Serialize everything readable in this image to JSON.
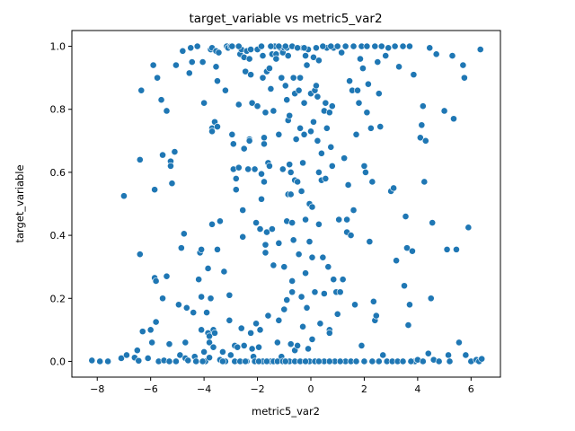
{
  "chart_data": {
    "type": "scatter",
    "title": "target_variable vs metric5_var2",
    "xlabel": "metric5_var2",
    "ylabel": "target_variable",
    "xlim": [
      -8.95,
      7.1
    ],
    "ylim": [
      -0.05,
      1.05
    ],
    "xticks": [
      -8,
      -6,
      -4,
      -2,
      0,
      2,
      4,
      6
    ],
    "yticks": [
      0.0,
      0.2,
      0.4,
      0.6,
      0.8,
      1.0
    ],
    "xtick_labels": [
      "−8",
      "−6",
      "−4",
      "−2",
      "0",
      "2",
      "4",
      "6"
    ],
    "ytick_labels": [
      "0.0",
      "0.2",
      "0.4",
      "0.6",
      "0.8",
      "1.0"
    ],
    "grid": false,
    "legend": "none",
    "marker_color": "#1f77b4",
    "points": [
      [
        -8.2,
        0.003
      ],
      [
        -7.9,
        0.0
      ],
      [
        -7.6,
        0.0
      ],
      [
        -7.1,
        0.01
      ],
      [
        -7.0,
        0.525
      ],
      [
        -6.9,
        0.02
      ],
      [
        -6.6,
        0.012
      ],
      [
        -6.5,
        0.035
      ],
      [
        -6.45,
        0.002
      ],
      [
        -6.4,
        0.64
      ],
      [
        -6.4,
        0.34
      ],
      [
        -6.35,
        0.86
      ],
      [
        -6.3,
        0.095
      ],
      [
        -6.1,
        0.01
      ],
      [
        -6.0,
        0.1
      ],
      [
        -5.95,
        0.06
      ],
      [
        -5.9,
        0.94
      ],
      [
        -5.85,
        0.545
      ],
      [
        -5.85,
        0.265
      ],
      [
        -5.8,
        0.255
      ],
      [
        -5.8,
        0.125
      ],
      [
        -5.75,
        0.9
      ],
      [
        -5.7,
        0.0
      ],
      [
        -5.6,
        0.83
      ],
      [
        -5.55,
        0.655
      ],
      [
        -5.55,
        0.2
      ],
      [
        -5.5,
        0.003
      ],
      [
        -5.4,
        0.795
      ],
      [
        -5.4,
        0.27
      ],
      [
        -5.3,
        0.055
      ],
      [
        -5.25,
        0.635
      ],
      [
        -5.25,
        0.62
      ],
      [
        -5.2,
        0.565
      ],
      [
        -5.1,
        0.665
      ],
      [
        -5.05,
        0.94
      ],
      [
        -5.05,
        0.0
      ],
      [
        -4.95,
        0.18
      ],
      [
        -4.9,
        0.02
      ],
      [
        -4.85,
        0.36
      ],
      [
        -4.8,
        0.985
      ],
      [
        -4.75,
        0.405
      ],
      [
        -4.7,
        0.06
      ],
      [
        -4.7,
        0.01
      ],
      [
        -4.65,
        0.17
      ],
      [
        -4.6,
        0.003
      ],
      [
        -4.55,
        0.915
      ],
      [
        -4.5,
        0.995
      ],
      [
        -4.45,
        0.95
      ],
      [
        -4.4,
        0.155
      ],
      [
        -4.35,
        0.015
      ],
      [
        -4.3,
        0.0
      ],
      [
        -4.25,
        1.0
      ],
      [
        -4.2,
        0.26
      ],
      [
        -4.15,
        0.345
      ],
      [
        -4.1,
        0.355
      ],
      [
        -4.1,
        0.205
      ],
      [
        -4.1,
        0.1
      ],
      [
        -4.05,
        0.95
      ],
      [
        -4.0,
        0.82
      ],
      [
        -4.0,
        0.03
      ],
      [
        -3.95,
        0.0
      ],
      [
        -3.9,
        0.155
      ],
      [
        -3.85,
        0.295
      ],
      [
        -3.85,
        0.09
      ],
      [
        -3.8,
        0.08
      ],
      [
        -3.8,
        0.06
      ],
      [
        -3.8,
        0.012
      ],
      [
        -3.75,
        0.2
      ],
      [
        -3.75,
        0.99
      ],
      [
        -3.7,
        0.995
      ],
      [
        -3.7,
        0.74
      ],
      [
        -3.7,
        0.73
      ],
      [
        -3.7,
        0.435
      ],
      [
        -3.65,
        0.1
      ],
      [
        -3.65,
        0.045
      ],
      [
        -3.6,
        0.76
      ],
      [
        -3.6,
        0.09
      ],
      [
        -3.55,
        0.985
      ],
      [
        -3.55,
        0.935
      ],
      [
        -3.5,
        0.89
      ],
      [
        -3.5,
        0.745
      ],
      [
        -3.5,
        0.355
      ],
      [
        -3.45,
        0.98
      ],
      [
        -3.4,
        0.445
      ],
      [
        -3.4,
        0.005
      ],
      [
        -3.3,
        0.03
      ],
      [
        -3.25,
        0.285
      ],
      [
        -3.2,
        0.86
      ],
      [
        -3.2,
        0.0
      ],
      [
        -3.15,
        1.0
      ],
      [
        -3.1,
        0.995
      ],
      [
        -3.05,
        0.13
      ],
      [
        -3.05,
        0.21
      ],
      [
        -3.0,
        1.0
      ],
      [
        -3.0,
        0.02
      ],
      [
        -2.95,
        0.72
      ],
      [
        -2.9,
        0.69
      ],
      [
        -2.9,
        0.61
      ],
      [
        -2.85,
        0.05
      ],
      [
        -2.85,
        0.0
      ],
      [
        -2.8,
        0.58
      ],
      [
        -2.8,
        0.545
      ],
      [
        -2.75,
        0.045
      ],
      [
        -2.7,
        0.615
      ],
      [
        -2.7,
        0.815
      ],
      [
        -2.65,
        0.975
      ],
      [
        -2.6,
        0.99
      ],
      [
        -2.6,
        0.105
      ],
      [
        -2.55,
        0.48
      ],
      [
        -2.55,
        0.395
      ],
      [
        -2.5,
        0.965
      ],
      [
        -2.5,
        0.675
      ],
      [
        -2.5,
        0.05
      ],
      [
        -2.45,
        0.92
      ],
      [
        -2.4,
        0.985
      ],
      [
        -2.4,
        0.0
      ],
      [
        -2.35,
        0.61
      ],
      [
        -2.3,
        0.705
      ],
      [
        -2.3,
        0.7
      ],
      [
        -2.3,
        0.96
      ],
      [
        -2.25,
        0.91
      ],
      [
        -2.25,
        0.09
      ],
      [
        -2.2,
        0.82
      ],
      [
        -2.2,
        0.04
      ],
      [
        -2.15,
        0.015
      ],
      [
        -2.1,
        0.61
      ],
      [
        -2.05,
        0.44
      ],
      [
        -2.05,
        0.12
      ],
      [
        -2.0,
        0.99
      ],
      [
        -2.0,
        0.81
      ],
      [
        -1.95,
        0.045
      ],
      [
        -1.9,
        0.42
      ],
      [
        -1.9,
        0.1
      ],
      [
        -1.85,
        0.595
      ],
      [
        -1.85,
        0.515
      ],
      [
        -1.8,
        0.97
      ],
      [
        -1.8,
        0.9
      ],
      [
        -1.8,
        0.0
      ],
      [
        -1.75,
        0.69
      ],
      [
        -1.75,
        0.71
      ],
      [
        -1.75,
        0.57
      ],
      [
        -1.7,
        0.37
      ],
      [
        -1.7,
        0.345
      ],
      [
        -1.7,
        0.79
      ],
      [
        -1.65,
        0.92
      ],
      [
        -1.65,
        0.41
      ],
      [
        -1.6,
        0.63
      ],
      [
        -1.6,
        0.145
      ],
      [
        -1.55,
        0.93
      ],
      [
        -1.55,
        0.62
      ],
      [
        -1.5,
        0.865
      ],
      [
        -1.5,
        0.0
      ],
      [
        -1.45,
        0.975
      ],
      [
        -1.45,
        0.42
      ],
      [
        -1.4,
        0.795
      ],
      [
        -1.4,
        0.305
      ],
      [
        -1.35,
        1.0
      ],
      [
        -1.3,
        0.975
      ],
      [
        -1.3,
        0.96
      ],
      [
        -1.25,
        0.06
      ],
      [
        -1.2,
        0.72
      ],
      [
        -1.2,
        0.375
      ],
      [
        -1.2,
        0.13
      ],
      [
        -1.15,
        0.995
      ],
      [
        -1.1,
        0.9
      ],
      [
        -1.1,
        0.015
      ],
      [
        -1.05,
        0.98
      ],
      [
        -1.05,
        0.61
      ],
      [
        -1.0,
        0.995
      ],
      [
        -1.0,
        0.3
      ],
      [
        -1.0,
        0.165
      ],
      [
        -0.95,
        0.875
      ],
      [
        -0.9,
        0.995
      ],
      [
        -0.9,
        0.83
      ],
      [
        -0.9,
        0.445
      ],
      [
        -0.9,
        0.195
      ],
      [
        -0.85,
        0.97
      ],
      [
        -0.85,
        0.765
      ],
      [
        -0.85,
        0.53
      ],
      [
        -0.8,
        0.78
      ],
      [
        -0.8,
        0.625
      ],
      [
        -0.8,
        0.0
      ],
      [
        -0.75,
        0.6
      ],
      [
        -0.75,
        0.53
      ],
      [
        -0.75,
        0.055
      ],
      [
        -0.7,
        0.44
      ],
      [
        -0.7,
        0.255
      ],
      [
        -0.7,
        0.22
      ],
      [
        -0.65,
        0.385
      ],
      [
        -0.65,
        0.9
      ],
      [
        -0.6,
        0.85
      ],
      [
        -0.6,
        0.575
      ],
      [
        -0.6,
        0.035
      ],
      [
        -0.55,
        0.705
      ],
      [
        -0.5,
        0.57
      ],
      [
        -0.5,
        0.05
      ],
      [
        -0.45,
        0.34
      ],
      [
        -0.45,
        0.86
      ],
      [
        -0.4,
        0.9
      ],
      [
        -0.4,
        0.74
      ],
      [
        -0.35,
        0.54
      ],
      [
        -0.35,
        0.205
      ],
      [
        -0.3,
        0.995
      ],
      [
        -0.3,
        0.63
      ],
      [
        -0.3,
        0.11
      ],
      [
        -0.25,
        0.82
      ],
      [
        -0.25,
        0.72
      ],
      [
        -0.2,
        0.97
      ],
      [
        -0.2,
        0.45
      ],
      [
        -0.2,
        0.28
      ],
      [
        -0.15,
        0.94
      ],
      [
        -0.15,
        0.17
      ],
      [
        -0.1,
        0.99
      ],
      [
        -0.1,
        0.04
      ],
      [
        -0.05,
        0.5
      ],
      [
        -0.05,
        0.38
      ],
      [
        -0.05,
        0.0
      ],
      [
        0.0,
        0.85
      ],
      [
        0.0,
        0.73
      ],
      [
        0.05,
        0.49
      ],
      [
        0.05,
        0.33
      ],
      [
        0.05,
        0.07
      ],
      [
        0.1,
        0.965
      ],
      [
        0.1,
        0.76
      ],
      [
        0.15,
        0.86
      ],
      [
        0.15,
        0.22
      ],
      [
        0.2,
        0.995
      ],
      [
        0.2,
        0.875
      ],
      [
        0.25,
        0.84
      ],
      [
        0.25,
        0.7
      ],
      [
        0.3,
        0.955
      ],
      [
        0.3,
        0.6
      ],
      [
        0.3,
        0.435
      ],
      [
        0.35,
        0.12
      ],
      [
        0.4,
        0.66
      ],
      [
        0.4,
        0.575
      ],
      [
        0.45,
        0.33
      ],
      [
        0.5,
        0.795
      ],
      [
        0.5,
        0.215
      ],
      [
        0.5,
        0.0
      ],
      [
        0.55,
        0.82
      ],
      [
        0.55,
        0.58
      ],
      [
        0.6,
        0.995
      ],
      [
        0.6,
        0.74
      ],
      [
        0.65,
        0.3
      ],
      [
        0.7,
        0.79
      ],
      [
        0.7,
        0.1
      ],
      [
        0.7,
        0.09
      ],
      [
        0.75,
        0.68
      ],
      [
        0.8,
        0.81
      ],
      [
        0.8,
        0.62
      ],
      [
        0.85,
        0.995
      ],
      [
        0.85,
        0.26
      ],
      [
        0.9,
        0.0
      ],
      [
        0.95,
        0.22
      ],
      [
        1.0,
        0.15
      ],
      [
        1.05,
        0.45
      ],
      [
        1.1,
        0.22
      ],
      [
        1.15,
        0.98
      ],
      [
        1.2,
        0.26
      ],
      [
        1.25,
        0.645
      ],
      [
        1.3,
        0.0
      ],
      [
        1.35,
        0.45
      ],
      [
        1.35,
        0.41
      ],
      [
        1.4,
        0.56
      ],
      [
        1.45,
        0.89
      ],
      [
        1.5,
        0.4
      ],
      [
        1.55,
        0.86
      ],
      [
        1.6,
        0.48
      ],
      [
        1.65,
        0.18
      ],
      [
        1.7,
        0.72
      ],
      [
        1.75,
        0.86
      ],
      [
        1.8,
        0.82
      ],
      [
        1.85,
        0.96
      ],
      [
        1.9,
        0.05
      ],
      [
        1.95,
        0.93
      ],
      [
        2.0,
        0.62
      ],
      [
        2.05,
        0.6
      ],
      [
        2.1,
        0.79
      ],
      [
        2.15,
        0.88
      ],
      [
        2.2,
        0.38
      ],
      [
        2.25,
        0.74
      ],
      [
        2.3,
        0.57
      ],
      [
        2.35,
        0.19
      ],
      [
        2.4,
        0.13
      ],
      [
        2.45,
        0.145
      ],
      [
        2.5,
        0.95
      ],
      [
        2.55,
        0.85
      ],
      [
        2.6,
        0.745
      ],
      [
        2.7,
        0.02
      ],
      [
        2.8,
        0.97
      ],
      [
        2.9,
        0.995
      ],
      [
        3.0,
        0.54
      ],
      [
        3.1,
        0.55
      ],
      [
        3.2,
        0.32
      ],
      [
        3.3,
        0.935
      ],
      [
        3.5,
        0.24
      ],
      [
        3.55,
        0.46
      ],
      [
        3.6,
        0.36
      ],
      [
        3.65,
        0.115
      ],
      [
        3.7,
        0.18
      ],
      [
        3.8,
        0.35
      ],
      [
        3.85,
        0.91
      ],
      [
        3.9,
        0.0
      ],
      [
        4.0,
        0.005
      ],
      [
        4.1,
        0.71
      ],
      [
        4.15,
        0.75
      ],
      [
        4.2,
        0.81
      ],
      [
        4.25,
        0.57
      ],
      [
        4.3,
        0.7
      ],
      [
        4.4,
        0.025
      ],
      [
        4.45,
        0.995
      ],
      [
        4.5,
        0.2
      ],
      [
        4.55,
        0.44
      ],
      [
        4.6,
        0.005
      ],
      [
        4.7,
        0.975
      ],
      [
        4.8,
        0.0
      ],
      [
        5.0,
        0.795
      ],
      [
        5.1,
        0.355
      ],
      [
        5.15,
        0.02
      ],
      [
        5.3,
        0.97
      ],
      [
        5.35,
        0.77
      ],
      [
        5.45,
        0.355
      ],
      [
        5.55,
        0.06
      ],
      [
        5.7,
        0.94
      ],
      [
        5.75,
        0.9
      ],
      [
        5.8,
        0.02
      ],
      [
        5.9,
        0.425
      ],
      [
        6.0,
        0.0
      ],
      [
        6.2,
        0.005
      ],
      [
        6.3,
        0.0
      ],
      [
        6.35,
        0.99
      ],
      [
        6.4,
        0.008
      ],
      [
        -2.95,
        1.0
      ],
      [
        -2.7,
        1.0
      ],
      [
        -2.25,
        0.99
      ],
      [
        -1.85,
        1.0
      ],
      [
        -1.5,
        1.0
      ],
      [
        -1.2,
        1.0
      ],
      [
        -0.95,
        1.0
      ],
      [
        -0.7,
        1.0
      ],
      [
        -0.5,
        0.995
      ],
      [
        -0.25,
        0.995
      ],
      [
        0.45,
        1.0
      ],
      [
        0.75,
        1.0
      ],
      [
        1.0,
        1.0
      ],
      [
        1.3,
        1.0
      ],
      [
        1.6,
        1.0
      ],
      [
        1.9,
        1.0
      ],
      [
        2.1,
        1.0
      ],
      [
        2.4,
        1.0
      ],
      [
        2.65,
        1.0
      ],
      [
        3.15,
        1.0
      ],
      [
        3.45,
        1.0
      ],
      [
        3.7,
        1.0
      ],
      [
        -5.3,
        0.0
      ],
      [
        -4.05,
        0.0
      ],
      [
        -3.3,
        0.0
      ],
      [
        -2.65,
        0.0
      ],
      [
        -2.45,
        0.0
      ],
      [
        -2.1,
        0.0
      ],
      [
        -1.95,
        0.0
      ],
      [
        -1.65,
        0.0
      ],
      [
        -1.4,
        0.0
      ],
      [
        -1.25,
        0.0
      ],
      [
        -1.05,
        0.0
      ],
      [
        -0.95,
        0.0
      ],
      [
        -0.6,
        0.0
      ],
      [
        -0.4,
        0.0
      ],
      [
        -0.2,
        0.0
      ],
      [
        0.15,
        0.0
      ],
      [
        0.3,
        0.0
      ],
      [
        0.7,
        0.0
      ],
      [
        1.1,
        0.0
      ],
      [
        1.5,
        0.0
      ],
      [
        1.7,
        0.0
      ],
      [
        2.0,
        0.0
      ],
      [
        2.3,
        0.0
      ],
      [
        2.55,
        0.0
      ],
      [
        2.85,
        0.0
      ],
      [
        3.05,
        0.0
      ],
      [
        3.25,
        0.0
      ],
      [
        3.45,
        0.0
      ],
      [
        3.75,
        0.0
      ],
      [
        4.2,
        0.0
      ],
      [
        5.2,
        0.0
      ]
    ]
  }
}
